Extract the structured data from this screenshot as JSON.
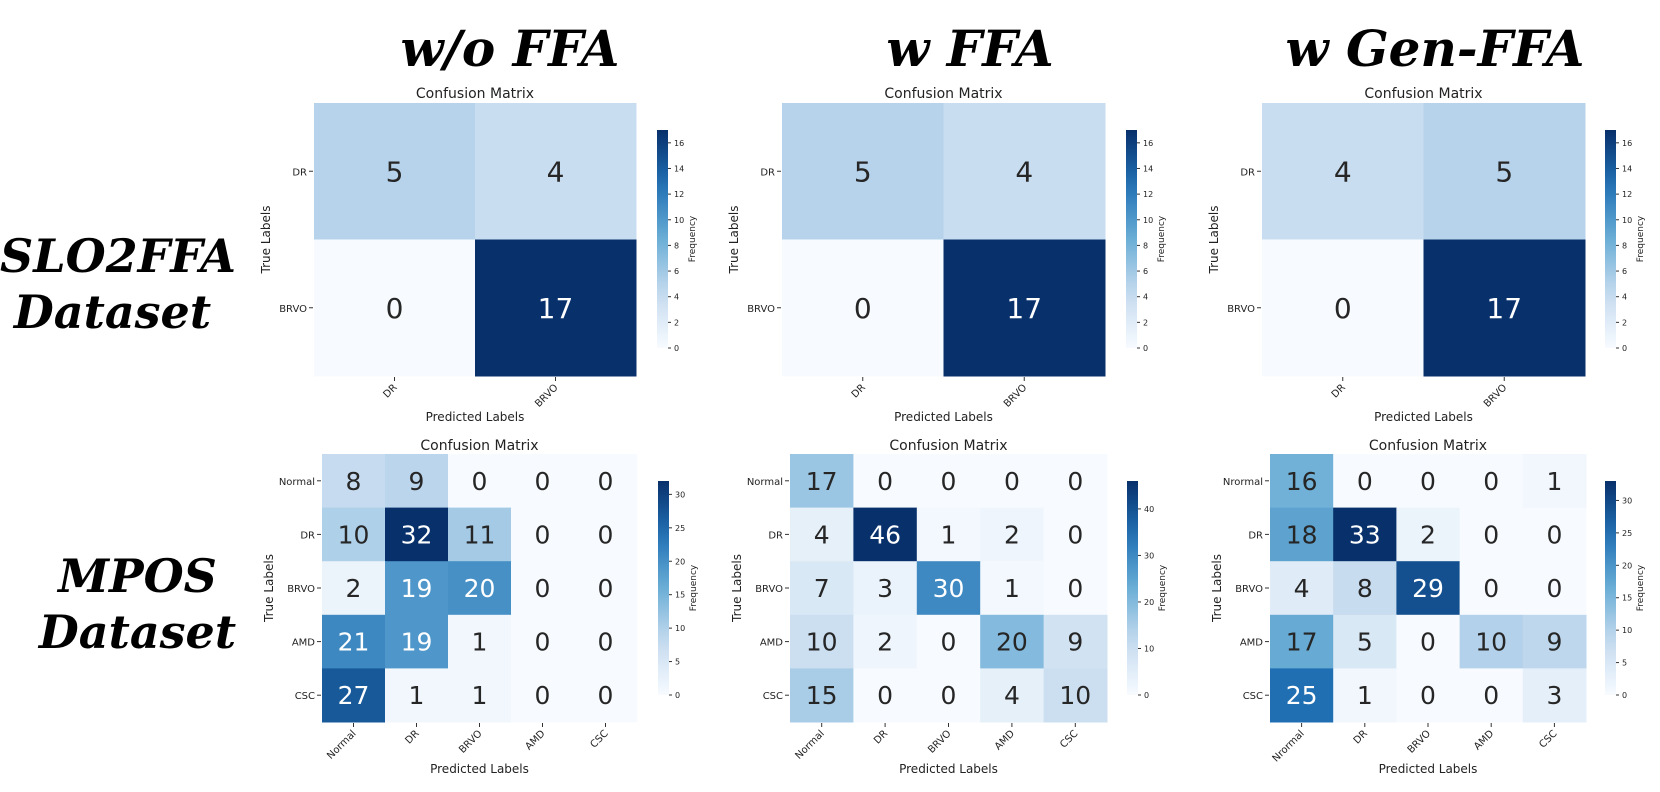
{
  "column_titles": [
    "w/o FFA",
    "w FFA",
    "w Gen-FFA"
  ],
  "row_titles": [
    {
      "line1": "SLO2FFA",
      "line2": "Dataset"
    },
    {
      "line1": "MPOS",
      "line2": "Dataset"
    }
  ],
  "colors": {
    "low": "#f7fbff",
    "high": "#08306b",
    "text_dark": "#262626",
    "text_light": "#ffffff"
  },
  "chart_data": [
    {
      "id": "slo-wo",
      "type": "heatmap",
      "title": "Confusion Matrix",
      "xlabel": "Predicted Labels",
      "ylabel": "True Labels",
      "colorbar_label": "Frequency",
      "x_labels": [
        "DR",
        "BRVO"
      ],
      "y_labels": [
        "DR",
        "BRVO"
      ],
      "vmax": 17,
      "colorbar_ticks": [
        0,
        2,
        4,
        6,
        8,
        10,
        12,
        14,
        16
      ],
      "values": [
        [
          5,
          4
        ],
        [
          0,
          17
        ]
      ]
    },
    {
      "id": "slo-w",
      "type": "heatmap",
      "title": "Confusion Matrix",
      "xlabel": "Predicted Labels",
      "ylabel": "True Labels",
      "colorbar_label": "Frequency",
      "x_labels": [
        "DR",
        "BRVO"
      ],
      "y_labels": [
        "DR",
        "BRVO"
      ],
      "vmax": 17,
      "colorbar_ticks": [
        0,
        2,
        4,
        6,
        8,
        10,
        12,
        14,
        16
      ],
      "values": [
        [
          5,
          4
        ],
        [
          0,
          17
        ]
      ]
    },
    {
      "id": "slo-gen",
      "type": "heatmap",
      "title": "Confusion Matrix",
      "xlabel": "Predicted Labels",
      "ylabel": "True Labels",
      "colorbar_label": "Frequency",
      "x_labels": [
        "DR",
        "BRVO"
      ],
      "y_labels": [
        "DR",
        "BRVO"
      ],
      "vmax": 17,
      "colorbar_ticks": [
        0,
        2,
        4,
        6,
        8,
        10,
        12,
        14,
        16
      ],
      "values": [
        [
          4,
          5
        ],
        [
          0,
          17
        ]
      ]
    },
    {
      "id": "mpos-wo",
      "type": "heatmap",
      "title": "Confusion Matrix",
      "xlabel": "Predicted Labels",
      "ylabel": "True Labels",
      "colorbar_label": "Frequency",
      "x_labels": [
        "Normal",
        "DR",
        "BRVO",
        "AMD",
        "CSC"
      ],
      "y_labels": [
        "Normal",
        "DR",
        "BRVO",
        "AMD",
        "CSC"
      ],
      "vmax": 32,
      "colorbar_ticks": [
        0,
        5,
        10,
        15,
        20,
        25,
        30
      ],
      "values": [
        [
          8,
          9,
          0,
          0,
          0
        ],
        [
          10,
          32,
          11,
          0,
          0
        ],
        [
          2,
          19,
          20,
          0,
          0
        ],
        [
          21,
          19,
          1,
          0,
          0
        ],
        [
          27,
          1,
          1,
          0,
          0
        ]
      ]
    },
    {
      "id": "mpos-w",
      "type": "heatmap",
      "title": "Confusion Matrix",
      "xlabel": "Predicted Labels",
      "ylabel": "True Labels",
      "colorbar_label": "Frequency",
      "x_labels": [
        "Normal",
        "DR",
        "BRVO",
        "AMD",
        "CSC"
      ],
      "y_labels": [
        "Normal",
        "DR",
        "BRVO",
        "AMD",
        "CSC"
      ],
      "vmax": 46,
      "colorbar_ticks": [
        0,
        10,
        20,
        30,
        40
      ],
      "values": [
        [
          17,
          0,
          0,
          0,
          0
        ],
        [
          4,
          46,
          1,
          2,
          0
        ],
        [
          7,
          3,
          30,
          1,
          0
        ],
        [
          10,
          2,
          0,
          20,
          9
        ],
        [
          15,
          0,
          0,
          4,
          10
        ]
      ]
    },
    {
      "id": "mpos-gen",
      "type": "heatmap",
      "title": "Confusion Matrix",
      "xlabel": "Predicted Labels",
      "ylabel": "True Labels",
      "colorbar_label": "Frequency",
      "x_labels": [
        "Nrormal",
        "DR",
        "BRVO",
        "AMD",
        "CSC"
      ],
      "y_labels": [
        "Nrormal",
        "DR",
        "BRVO",
        "AMD",
        "CSC"
      ],
      "vmax": 33,
      "colorbar_ticks": [
        0,
        5,
        10,
        15,
        20,
        25,
        30
      ],
      "values": [
        [
          16,
          0,
          0,
          0,
          1
        ],
        [
          18,
          33,
          2,
          0,
          0
        ],
        [
          4,
          8,
          29,
          0,
          0
        ],
        [
          17,
          5,
          0,
          10,
          9
        ],
        [
          25,
          1,
          0,
          0,
          3
        ]
      ]
    }
  ]
}
